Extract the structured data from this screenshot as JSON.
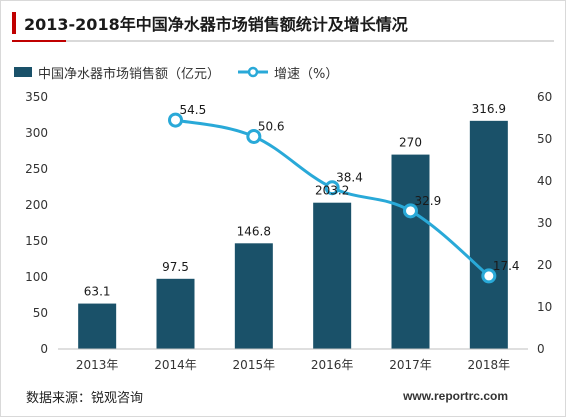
{
  "title": "2013-2018年中国净水器市场销售额统计及增长情况",
  "source": "数据来源：锐观咨询",
  "watermark": "www.reportrc.com",
  "colors": {
    "bar": "#1a5169",
    "line": "#29a9d8",
    "accent": "#c00000"
  },
  "chart_data": {
    "type": "bar",
    "categories": [
      "2013年",
      "2014年",
      "2015年",
      "2016年",
      "2017年",
      "2018年"
    ],
    "series": [
      {
        "name": "中国净水器市场销售额（亿元）",
        "type": "bar",
        "axis": "left",
        "values": [
          63.1,
          97.5,
          146.8,
          203.2,
          270,
          316.9
        ],
        "labels": [
          "63.1",
          "97.5",
          "146.8",
          "203.2",
          "270",
          "316.9"
        ]
      },
      {
        "name": "增速（%）",
        "type": "line",
        "axis": "right",
        "values": [
          null,
          54.5,
          50.6,
          38.4,
          32.9,
          17.4
        ],
        "labels": [
          "",
          "54.5",
          "50.6",
          "38.4",
          "32.9",
          "17.4"
        ]
      }
    ],
    "y_left": {
      "lim": [
        0,
        350
      ],
      "ticks": [
        "0",
        "50",
        "100",
        "150",
        "200",
        "250",
        "300",
        "350"
      ]
    },
    "y_right": {
      "lim": [
        0,
        60
      ],
      "ticks": [
        "0",
        "10",
        "20",
        "30",
        "40",
        "50",
        "60"
      ]
    },
    "legend_position": "top-left",
    "grid": false
  }
}
